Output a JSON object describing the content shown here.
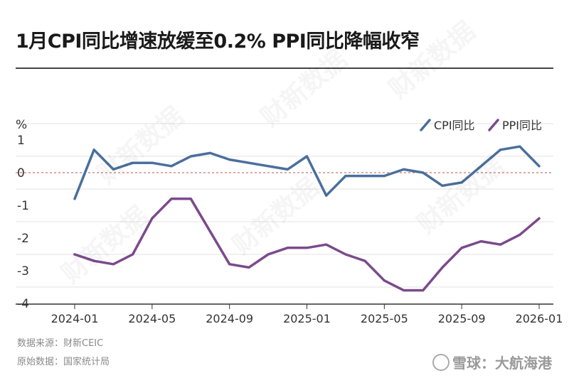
{
  "title": "1月CPI同比增速放缓至0.2% PPI同比降幅收窄",
  "footer": {
    "source": "数据来源：财新CEIC",
    "original": "原始数据：国家统计局"
  },
  "watermark": {
    "text": "雪球：大航海港",
    "logo": "财新数据"
  },
  "chart_data": {
    "type": "line",
    "ylabel": "%",
    "ylim": [
      -4,
      1.5
    ],
    "yticks": [
      1,
      0,
      -1,
      -2,
      -3,
      -4
    ],
    "reference_line": 0,
    "x": [
      "2024-01",
      "2024-02",
      "2024-03",
      "2024-04",
      "2024-05",
      "2024-06",
      "2024-07",
      "2024-08",
      "2024-09",
      "2024-10",
      "2024-11",
      "2024-12",
      "2025-01",
      "2025-02",
      "2025-03",
      "2025-04",
      "2025-05",
      "2025-06",
      "2025-07",
      "2025-08",
      "2025-09",
      "2025-10",
      "2025-11",
      "2025-12",
      "2026-01"
    ],
    "xtick_labels": [
      "2024-01",
      "2024-05",
      "2024-09",
      "2025-01",
      "2025-05",
      "2025-09",
      "2026-01"
    ],
    "legend_position": "top-right",
    "series": [
      {
        "name": "CPI同比",
        "color": "#4a6f9c",
        "values": [
          -0.8,
          0.7,
          0.1,
          0.3,
          0.3,
          0.2,
          0.5,
          0.6,
          0.4,
          0.3,
          0.2,
          0.1,
          0.5,
          -0.7,
          -0.1,
          -0.1,
          -0.1,
          0.1,
          0.0,
          -0.4,
          -0.3,
          0.2,
          0.7,
          0.8,
          0.2
        ]
      },
      {
        "name": "PPI同比",
        "color": "#7b4a8c",
        "values": [
          -2.5,
          -2.7,
          -2.8,
          -2.5,
          -1.4,
          -0.8,
          -0.8,
          -1.8,
          -2.8,
          -2.9,
          -2.5,
          -2.3,
          -2.3,
          -2.2,
          -2.5,
          -2.7,
          -3.3,
          -3.6,
          -3.6,
          -2.9,
          -2.3,
          -2.1,
          -2.2,
          -1.9,
          -1.4
        ]
      }
    ]
  }
}
